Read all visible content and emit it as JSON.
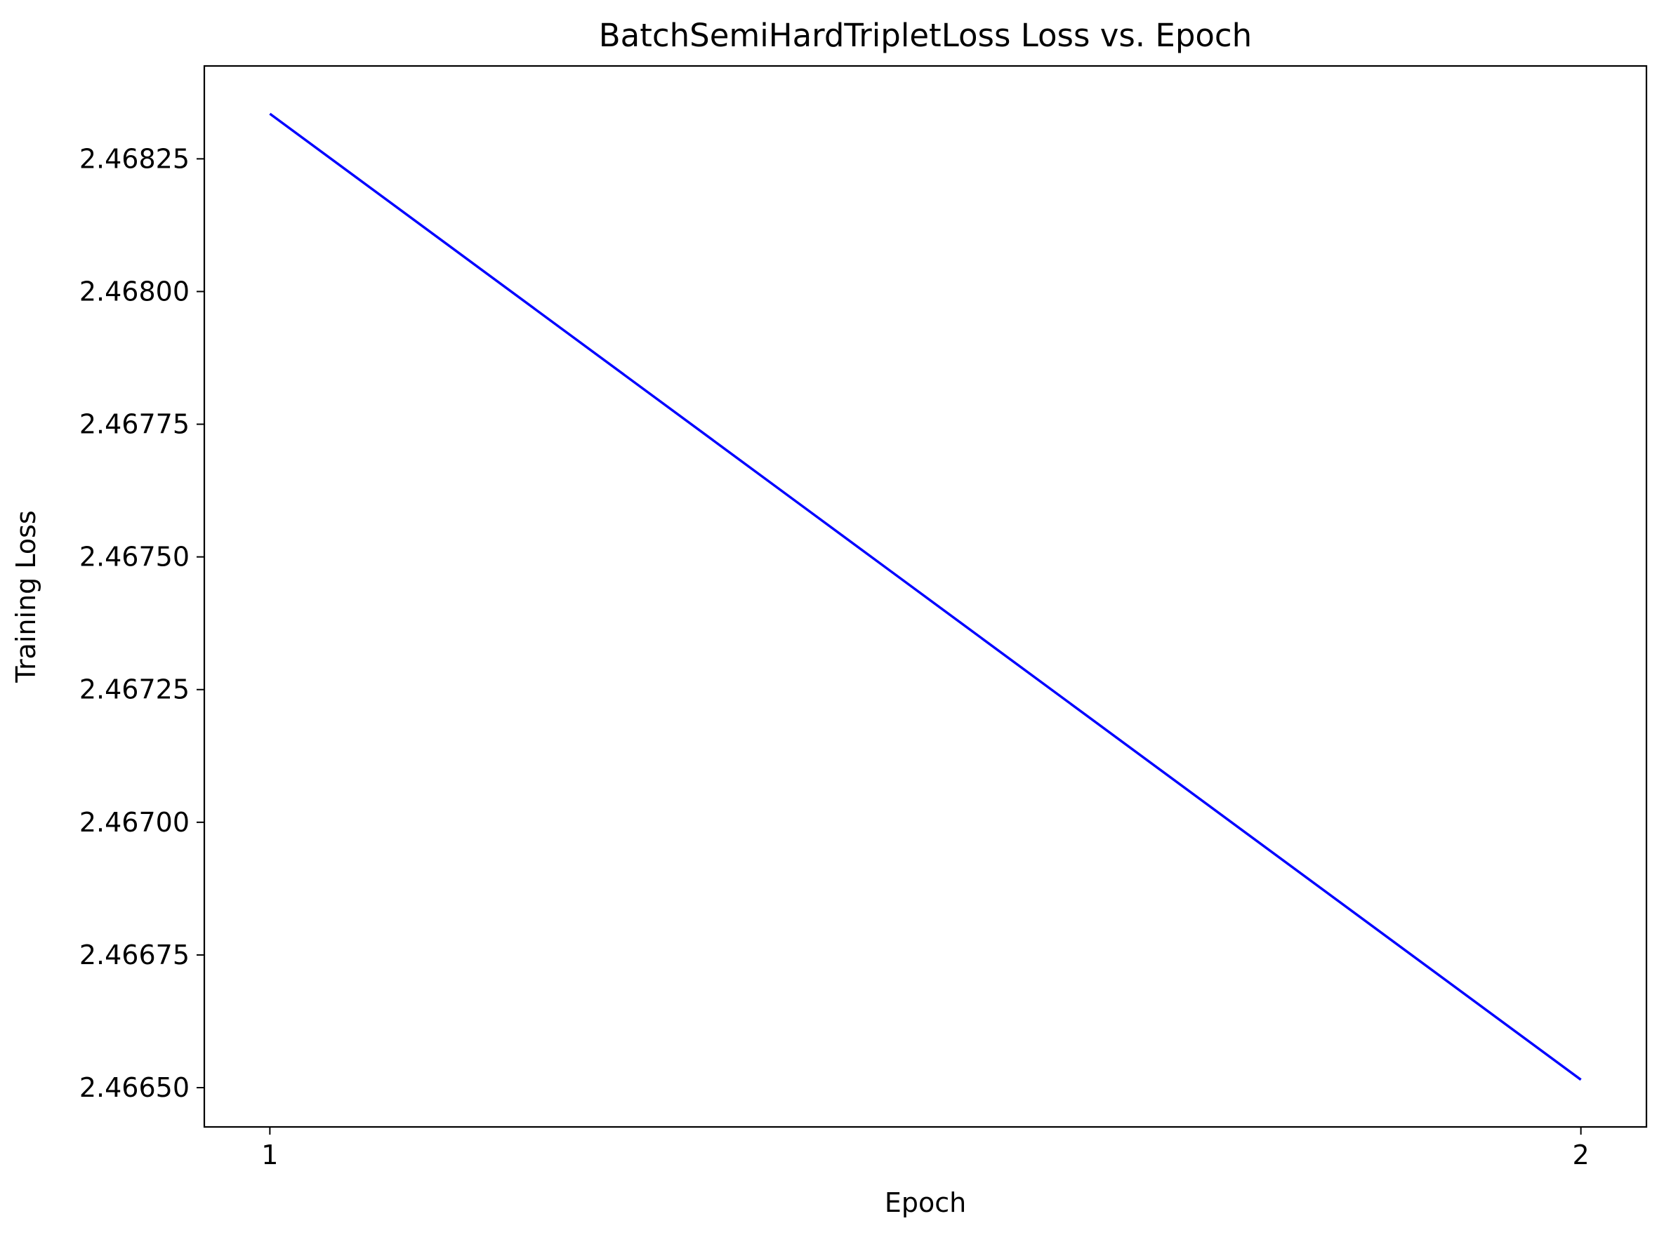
{
  "chart_data": {
    "type": "line",
    "title": "BatchSemiHardTripletLoss Loss vs. Epoch",
    "xlabel": "Epoch",
    "ylabel": "Training Loss",
    "x": [
      1,
      2
    ],
    "xticks": [
      1,
      2
    ],
    "xtick_labels": [
      "1",
      "2"
    ],
    "xlim": [
      0.95,
      2.05
    ],
    "yticks": [
      2.4665,
      2.46675,
      2.467,
      2.46725,
      2.4675,
      2.46775,
      2.468,
      2.46825
    ],
    "ytick_labels": [
      "2.46650",
      "2.46675",
      "2.46700",
      "2.46725",
      "2.46750",
      "2.46775",
      "2.46800",
      "2.46825"
    ],
    "ylim": [
      2.466426,
      2.468425
    ],
    "series": [
      {
        "values": [
          2.468335,
          2.466515
        ],
        "color": "#0000ff"
      }
    ],
    "grid": false,
    "legend": false
  }
}
